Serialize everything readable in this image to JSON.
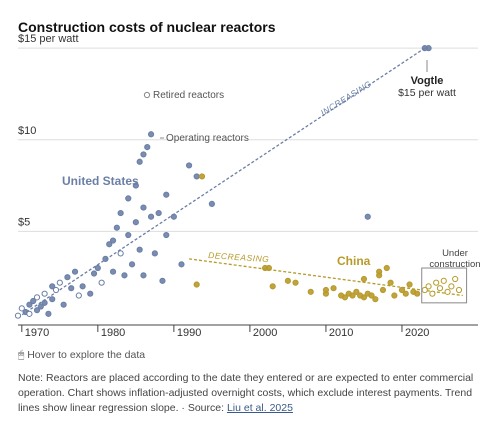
{
  "chart_data": {
    "type": "scatter",
    "title": "Construction costs of nuclear reactors",
    "xlim": [
      1969.5,
      2030
    ],
    "xticks": [
      1970,
      1980,
      1990,
      2000,
      2010,
      2020
    ],
    "ylim": [
      0,
      15.5
    ],
    "yticks": [
      {
        "value": 15,
        "label": "$15 per watt"
      },
      {
        "value": 10,
        "label": "$10"
      },
      {
        "value": 5,
        "label": "$5"
      }
    ],
    "grid": true,
    "legend": {
      "retired": "Retired reactors",
      "operating": "Operating reactors"
    },
    "annotations": {
      "increasing": "INCREASING",
      "decreasing": "DECREASING",
      "vogtle": "Vogtle",
      "vogtle_cost": "$15 per watt",
      "under_construction": [
        "Under",
        "construction"
      ]
    },
    "series": [
      {
        "name": "United States",
        "color": "#6b7fa6",
        "x": [
          1969.5,
          1970,
          1970.5,
          1971,
          1971,
          1971.5,
          1972,
          1972,
          1972.5,
          1973,
          1973,
          1973.5,
          1974,
          1974,
          1974.5,
          1975,
          1975.5,
          1976,
          1976.5,
          1977,
          1977.5,
          1978,
          1979,
          1979.5,
          1980,
          1980.5,
          1981,
          1981.5,
          1982,
          1982,
          1982.5,
          1983,
          1983,
          1983.5,
          1984,
          1984,
          1984.5,
          1985,
          1985,
          1985.5,
          1985.5,
          1986,
          1986,
          1986,
          1986.5,
          1987,
          1987,
          1987.5,
          1988,
          1988.5,
          1989,
          1989,
          1990,
          1991,
          1992,
          1993,
          1995,
          2015.5,
          2023,
          2023.5
        ],
        "values": [
          0.4,
          0.8,
          0.6,
          0.5,
          1.0,
          1.2,
          0.7,
          1.4,
          0.9,
          1.1,
          1.6,
          0.5,
          1.3,
          2.0,
          1.8,
          2.2,
          1.0,
          2.5,
          1.9,
          2.8,
          1.5,
          2.0,
          1.6,
          2.7,
          3.0,
          2.2,
          3.5,
          4.3,
          2.8,
          4.5,
          5.2,
          3.8,
          6.0,
          2.6,
          4.8,
          6.8,
          3.2,
          5.5,
          7.5,
          4.0,
          8.8,
          9.2,
          6.3,
          2.6,
          9.6,
          5.8,
          10.3,
          3.8,
          6.0,
          2.3,
          4.8,
          7.0,
          5.8,
          3.2,
          8.6,
          8.0,
          6.5,
          5.8,
          15.0,
          15.0
        ],
        "hollow": [
          true,
          true,
          false,
          true,
          false,
          false,
          false,
          true,
          false,
          false,
          true,
          false,
          false,
          false,
          true,
          true,
          false,
          false,
          false,
          false,
          true,
          false,
          false,
          false,
          false,
          true,
          false,
          false,
          false,
          false,
          false,
          true,
          false,
          false,
          false,
          false,
          false,
          false,
          false,
          false,
          false,
          false,
          false,
          false,
          false,
          false,
          false,
          false,
          false,
          false,
          false,
          false,
          false,
          false,
          false,
          false,
          false,
          false,
          false,
          false
        ],
        "trend": {
          "x": [
            1969.5,
            2023
          ],
          "y": [
            0.3,
            15.0
          ]
        }
      },
      {
        "name": "China",
        "color": "#b89a2a",
        "x": [
          1993,
          1993.7,
          2002,
          2002.5,
          2003,
          2005,
          2006,
          2008,
          2010,
          2010,
          2011,
          2012,
          2012.5,
          2013,
          2013.5,
          2014,
          2014.5,
          2015,
          2015,
          2015.5,
          2016,
          2016.5,
          2017,
          2017,
          2017.5,
          2018,
          2018.5,
          2019,
          2020,
          2020.5,
          2021,
          2021.5,
          2022,
          2023,
          2023.5,
          2024,
          2024.5,
          2025,
          2025.5,
          2026,
          2026.5,
          2027,
          2027.5
        ],
        "values": [
          2.1,
          8.0,
          3.0,
          3.0,
          2.0,
          2.3,
          2.2,
          1.7,
          1.8,
          1.6,
          1.9,
          1.5,
          1.4,
          1.6,
          1.5,
          1.7,
          1.5,
          1.4,
          2.4,
          1.6,
          1.5,
          1.3,
          2.6,
          2.8,
          1.8,
          3.0,
          2.2,
          1.5,
          1.8,
          1.6,
          2.1,
          1.7,
          1.6,
          1.8,
          2.0,
          1.6,
          2.2,
          1.9,
          2.3,
          1.7,
          2.0,
          2.4,
          1.8
        ],
        "hollow": [
          false,
          false,
          false,
          false,
          false,
          false,
          false,
          false,
          false,
          false,
          false,
          false,
          false,
          false,
          false,
          false,
          false,
          false,
          false,
          false,
          false,
          false,
          false,
          false,
          false,
          false,
          false,
          false,
          false,
          false,
          false,
          false,
          false,
          true,
          true,
          true,
          true,
          true,
          true,
          true,
          true,
          true,
          true
        ],
        "trend": {
          "x": [
            1992,
            2028
          ],
          "y": [
            3.5,
            1.5
          ]
        }
      }
    ]
  },
  "footer": {
    "hover": "Hover to explore the data",
    "note": "Note: Reactors are placed according to the date they entered or are expected to enter commercial operation. Chart shows inflation-adjusted overnight costs, which exclude interest payments. Trend lines show linear regression slope.",
    "source_label": "Source:",
    "source": "Liu et al. 2025"
  }
}
